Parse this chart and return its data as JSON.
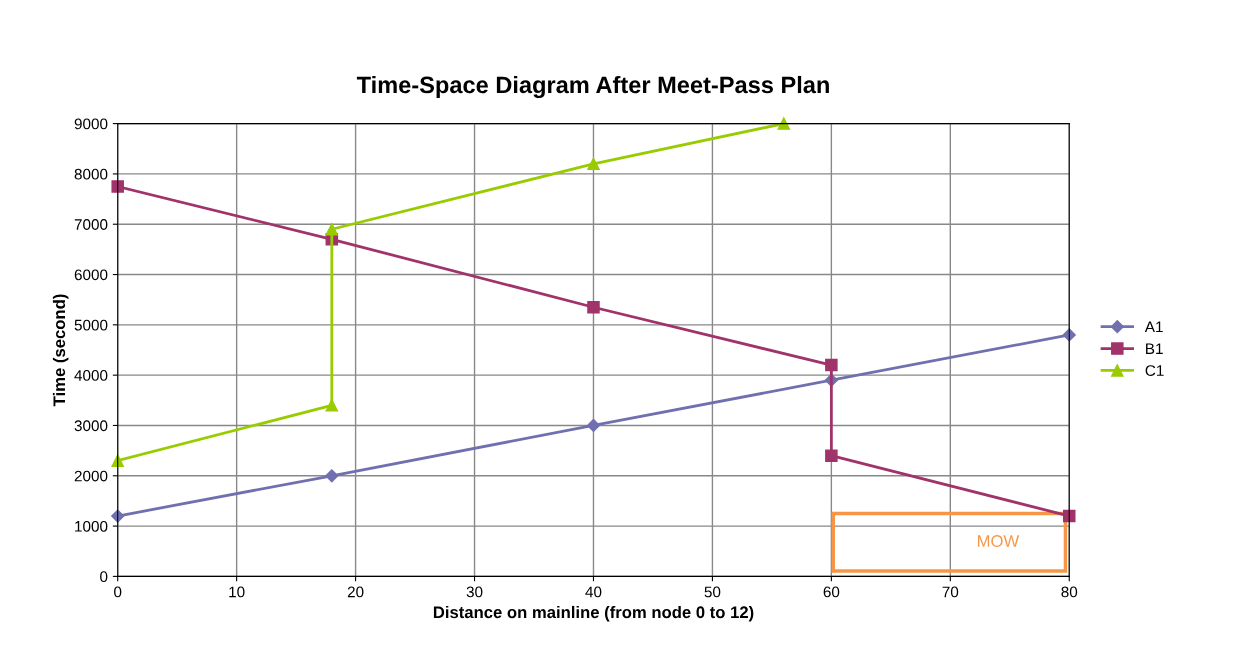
{
  "chart_data": {
    "type": "line",
    "title": "Time-Space Diagram After Meet-Pass Plan",
    "xlabel": "Distance on mainline (from node 0 to 12)",
    "ylabel": "Time (second)",
    "xlim": [
      0,
      80
    ],
    "xticks": [
      0,
      10,
      20,
      30,
      40,
      50,
      60,
      70,
      80
    ],
    "ylim": [
      0,
      9000
    ],
    "yticks": [
      0,
      1000,
      2000,
      3000,
      4000,
      5000,
      6000,
      7000,
      8000,
      9000
    ],
    "grid": true,
    "legend": "right",
    "series": [
      {
        "name": "A1",
        "color": "#7070b0",
        "marker": "diamond",
        "x": [
          0,
          18,
          40,
          60,
          80
        ],
        "values": [
          1200,
          2000,
          3000,
          3900,
          4800
        ]
      },
      {
        "name": "B1",
        "color": "#a0336a",
        "marker": "square",
        "x": [
          0,
          18,
          40,
          60,
          60,
          80
        ],
        "values": [
          7750,
          6700,
          5350,
          4200,
          2400,
          1200
        ]
      },
      {
        "name": "C1",
        "color": "#99cc00",
        "marker": "triangle",
        "x": [
          0,
          18,
          18,
          40,
          56
        ],
        "values": [
          2300,
          3400,
          6900,
          8200,
          9000
        ]
      }
    ],
    "annotations": [
      "MOW"
    ]
  }
}
